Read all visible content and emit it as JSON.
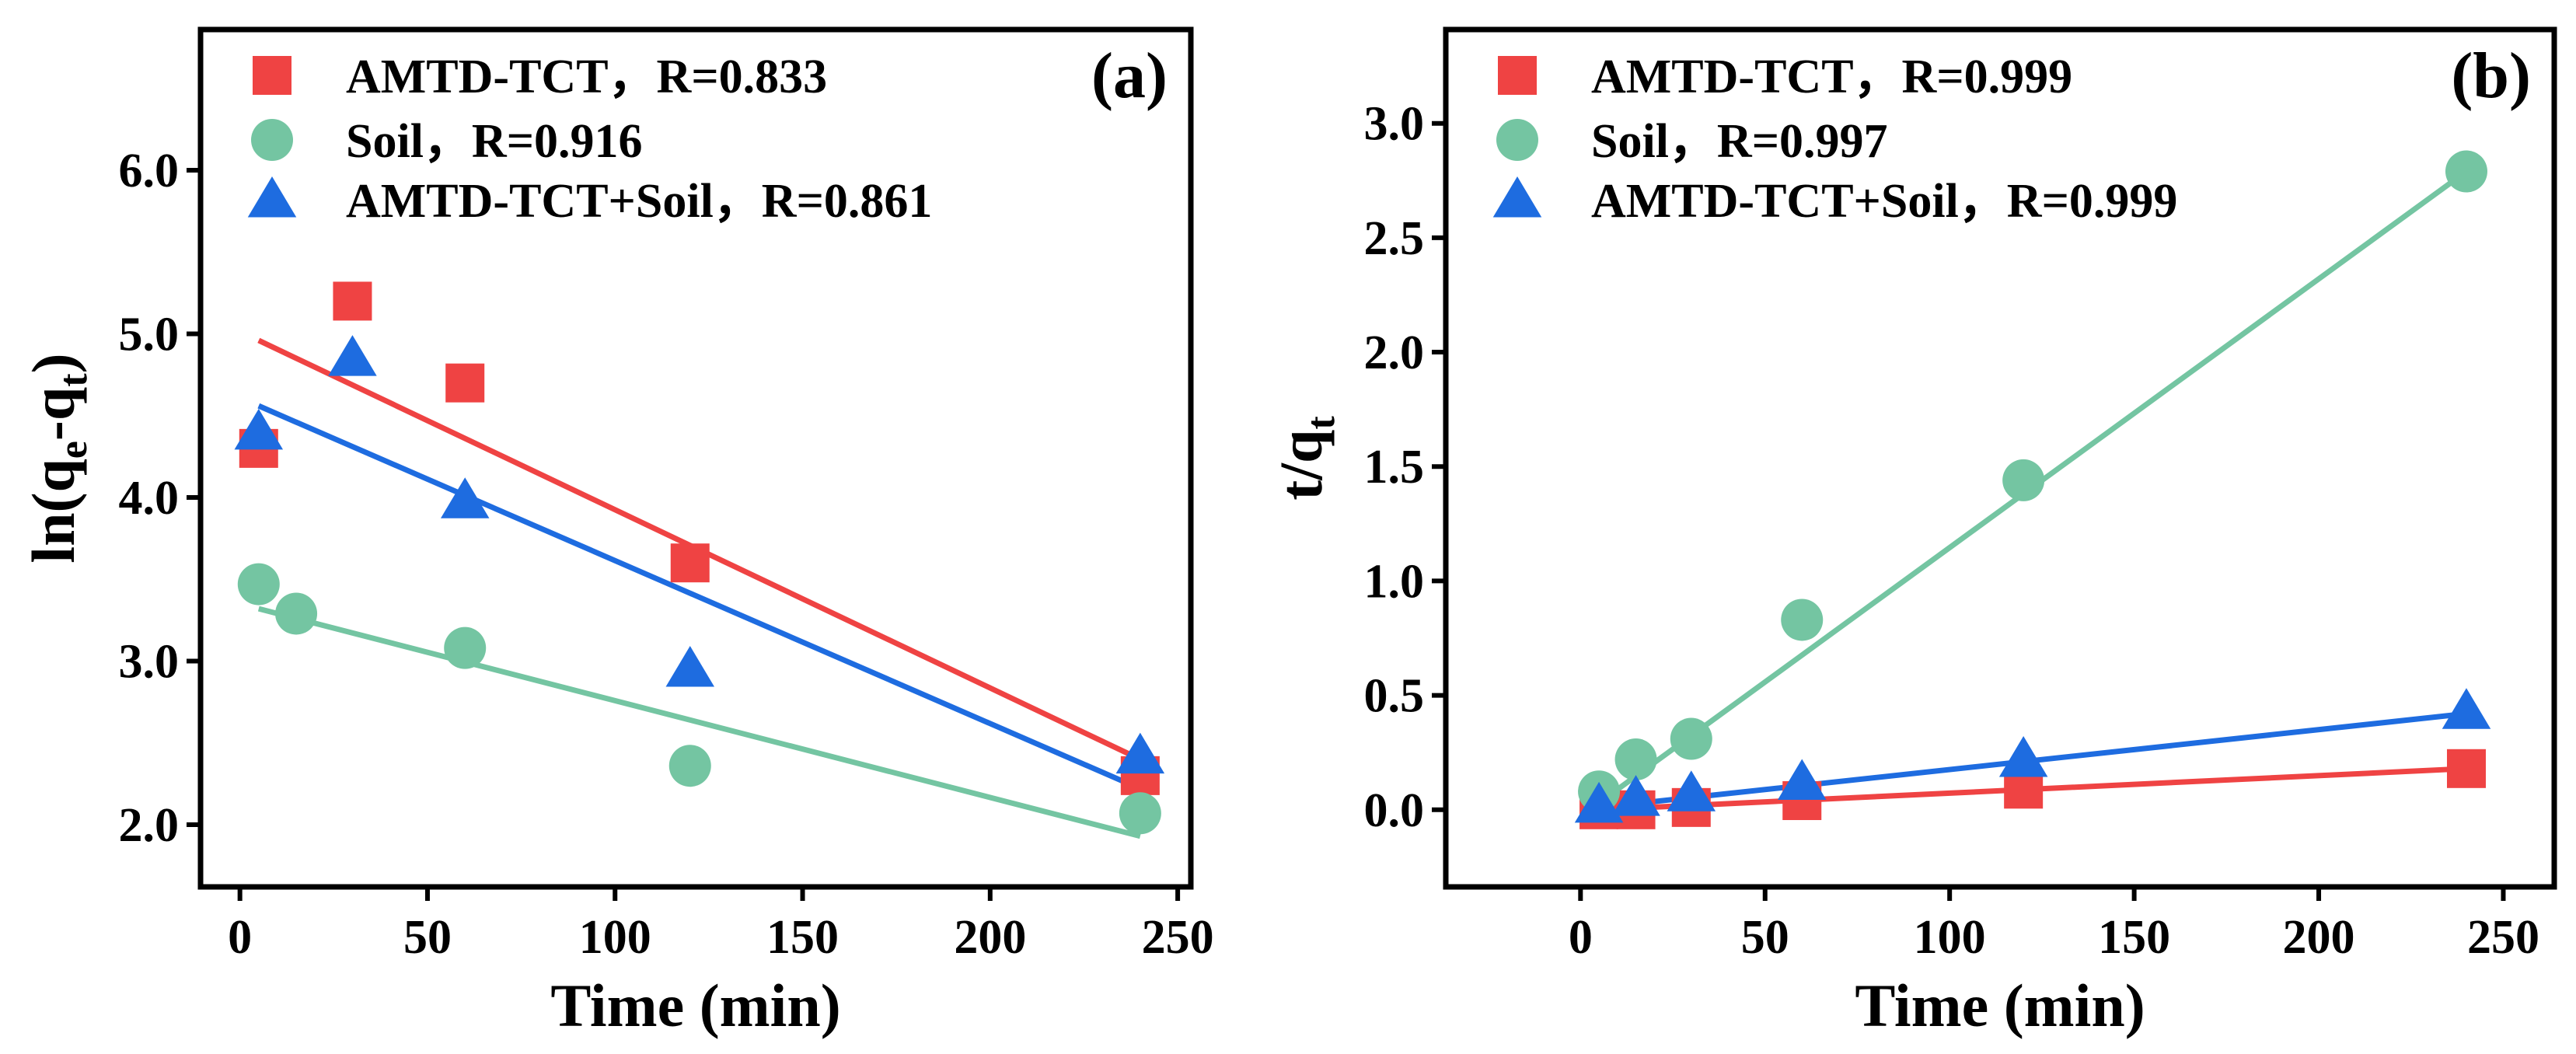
{
  "colors": {
    "red": "#EF4343",
    "green": "#74C5A2",
    "blue": "#1E6CE0"
  },
  "chart_data": [
    {
      "type": "scatter",
      "panel_label": "(a)",
      "xlabel": "Time (min)",
      "ylabel_parts": [
        [
          "ln(q",
          ""
        ],
        [
          "e",
          "sub"
        ],
        [
          "-q",
          ""
        ],
        [
          "t",
          "sub"
        ],
        [
          ")",
          ""
        ]
      ],
      "xlim": [
        -10.5,
        253.5
      ],
      "ylim": [
        1.62,
        6.86
      ],
      "xticks": [
        0,
        50,
        100,
        150,
        200,
        250
      ],
      "yticks": [
        2.0,
        3.0,
        4.0,
        5.0,
        6.0
      ],
      "ytick_labels": [
        "2.0",
        "3.0",
        "4.0",
        "5.0",
        "6.0"
      ],
      "legend_position": "top-left",
      "series": [
        {
          "name": "AMTD-TCT，R=0.833",
          "marker": "square",
          "color": "red",
          "x": [
            5,
            30,
            60,
            120,
            240
          ],
          "y": [
            4.3,
            5.2,
            4.7,
            3.6,
            2.3
          ],
          "fit": [
            [
              5,
              4.96
            ],
            [
              240,
              2.4
            ]
          ]
        },
        {
          "name": "Soil，R=0.916",
          "marker": "circle",
          "color": "green",
          "x": [
            5,
            15,
            60,
            120,
            240
          ],
          "y": [
            3.47,
            3.29,
            3.08,
            2.36,
            2.07
          ],
          "fit": [
            [
              5,
              3.32
            ],
            [
              240,
              1.93
            ]
          ]
        },
        {
          "name": "AMTD-TCT+Soil，R=0.861",
          "marker": "triangle",
          "color": "blue",
          "x": [
            5,
            30,
            60,
            120,
            240
          ],
          "y": [
            4.4,
            4.85,
            3.98,
            2.95,
            2.42
          ],
          "fit": [
            [
              5,
              4.56
            ],
            [
              240,
              2.22
            ]
          ]
        }
      ]
    },
    {
      "type": "scatter",
      "panel_label": "(b)",
      "xlabel": "Time (min)",
      "ylabel_parts": [
        [
          "t/q",
          ""
        ],
        [
          "t",
          "sub"
        ]
      ],
      "xlim": [
        -36.5,
        263.8
      ],
      "ylim": [
        -0.337,
        3.41
      ],
      "xticks": [
        0,
        50,
        100,
        150,
        200,
        250
      ],
      "yticks": [
        0.0,
        0.5,
        1.0,
        1.5,
        2.0,
        2.5,
        3.0
      ],
      "ytick_labels": [
        "0.0",
        "0.5",
        "1.0",
        "1.5",
        "2.0",
        "2.5",
        "3.0"
      ],
      "legend_position": "top-left",
      "series": [
        {
          "name": "AMTD-TCT，R=0.999",
          "marker": "square",
          "color": "red",
          "x": [
            5,
            15,
            30,
            60,
            120,
            240
          ],
          "y": [
            0.0,
            0.0,
            0.01,
            0.04,
            0.09,
            0.18
          ],
          "fit": [
            [
              5,
              0.0
            ],
            [
              240,
              0.18
            ]
          ]
        },
        {
          "name": "Soil，R=0.997",
          "marker": "circle",
          "color": "green",
          "x": [
            5,
            15,
            30,
            60,
            120,
            240
          ],
          "y": [
            0.08,
            0.22,
            0.31,
            0.83,
            1.44,
            2.79
          ],
          "fit": [
            [
              5,
              0.03
            ],
            [
              240,
              2.79
            ]
          ]
        },
        {
          "name": "AMTD-TCT+Soil，R=0.999",
          "marker": "triangle",
          "color": "blue",
          "x": [
            5,
            15,
            30,
            60,
            120,
            240
          ],
          "y": [
            0.02,
            0.05,
            0.07,
            0.12,
            0.22,
            0.43
          ],
          "fit": [
            [
              5,
              0.01
            ],
            [
              240,
              0.42
            ]
          ]
        }
      ]
    }
  ]
}
